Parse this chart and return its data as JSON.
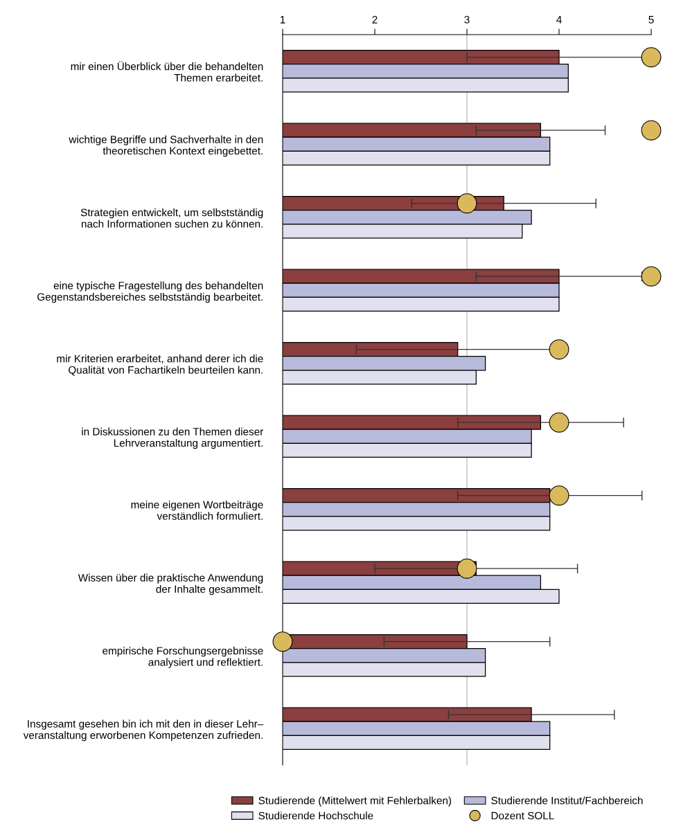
{
  "chart_data": {
    "type": "bar",
    "orientation": "horizontal",
    "categories": [
      "mir einen Überblick über die behandelten\nThemen erarbeitet.",
      "wichtige Begriffe und Sachverhalte in den\ntheoretischen Kontext eingebettet.",
      "Strategien entwickelt, um selbstständig\nnach Informationen suchen zu können.",
      "eine typische Fragestellung des behandelten\nGegenstandsbereiches selbstständig bearbeitet.",
      "mir Kriterien erarbeitet, anhand derer ich die\nQualität von Fachartikeln beurteilen kann.",
      "in Diskussionen zu den Themen dieser\nLehrveranstaltung argumentiert.",
      "meine eigenen Wortbeiträge\nverständlich formuliert.",
      "Wissen über die praktische Anwendung\nder Inhalte gesammelt.",
      "empirische Forschungsergebnisse\nanalysiert und reflektiert.",
      "Insgesamt gesehen bin ich mit den in dieser Lehr–\nveranstaltung erworbenen Kompetenzen zufrieden."
    ],
    "series": [
      {
        "name": "Studierende (Mittelwert mit Fehlerbalken)",
        "color": "#8b3f3f",
        "values": [
          4.0,
          3.8,
          3.4,
          4.0,
          2.9,
          3.8,
          3.9,
          3.1,
          3.0,
          3.7
        ],
        "errors": [
          1.0,
          [
            3.1,
            4.5
          ],
          [
            2.4,
            4.4
          ],
          [
            3.1,
            4.9
          ],
          1.1,
          [
            2.9,
            4.7
          ],
          [
            2.9,
            4.9
          ],
          [
            2.0,
            4.2
          ],
          [
            2.1,
            3.9
          ],
          [
            2.8,
            4.6
          ]
        ]
      },
      {
        "name": "Studierende Institut/Fachbereich",
        "color": "#b8badb",
        "values": [
          4.1,
          3.9,
          3.7,
          4.0,
          3.2,
          3.7,
          3.9,
          3.8,
          3.2,
          3.9
        ]
      },
      {
        "name": "Studierende Hochschule",
        "color": "#e0e0ee",
        "values": [
          4.1,
          3.9,
          3.6,
          4.0,
          3.1,
          3.7,
          3.9,
          4.0,
          3.2,
          3.9
        ]
      },
      {
        "name": "Dozent SOLL",
        "type": "scatter",
        "color": "#d9b95c",
        "marker": "circle",
        "values": [
          5,
          5,
          3,
          5,
          4,
          4,
          4,
          3,
          1,
          null
        ]
      }
    ],
    "xlim": [
      1,
      5
    ],
    "xticks": [
      1,
      2,
      3,
      4,
      5
    ],
    "ref_lines": [
      {
        "axis": "x",
        "value": 3,
        "color": "#c0c0c0"
      }
    ],
    "grid": false,
    "legend": "bottom"
  }
}
